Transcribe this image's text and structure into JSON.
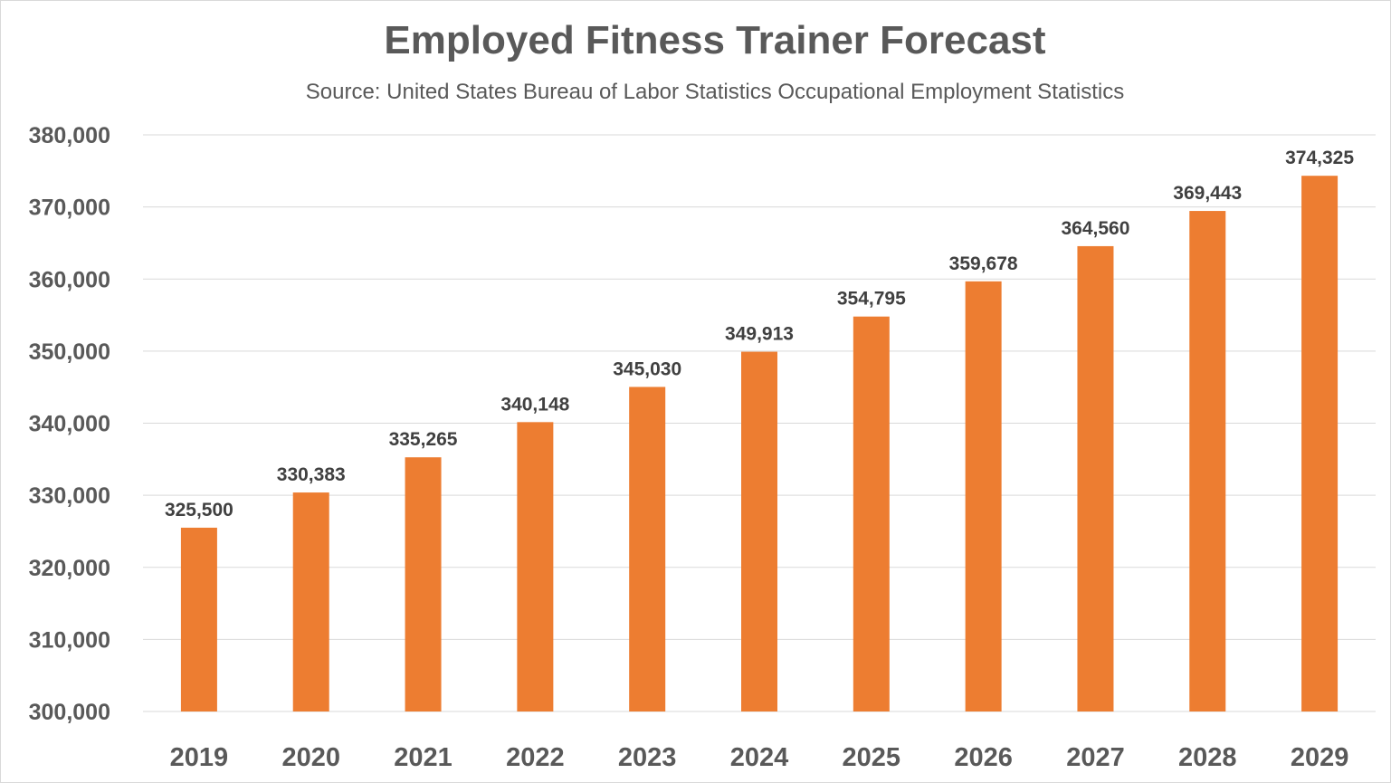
{
  "chart_data": {
    "type": "bar",
    "title": "Employed Fitness Trainer Forecast",
    "subtitle": "Source: United States Bureau of Labor Statistics Occupational Employment Statistics",
    "categories": [
      "2019",
      "2020",
      "2021",
      "2022",
      "2023",
      "2024",
      "2025",
      "2026",
      "2027",
      "2028",
      "2029"
    ],
    "values": [
      325500,
      330383,
      335265,
      340148,
      345030,
      349913,
      354795,
      359678,
      364560,
      369443,
      374325
    ],
    "data_labels": [
      "325,500",
      "330,383",
      "335,265",
      "340,148",
      "345,030",
      "349,913",
      "354,795",
      "359,678",
      "364,560",
      "369,443",
      "374,325"
    ],
    "ylim": [
      300000,
      380000
    ],
    "yticks": [
      "300,000",
      "310,000",
      "320,000",
      "330,000",
      "340,000",
      "350,000",
      "360,000",
      "370,000",
      "380,000"
    ],
    "xlabel": "",
    "ylabel": "",
    "grid": true,
    "legend": "none",
    "colors": {
      "bar": "#ED7D31",
      "grid": "#D9D9D9",
      "text": "#595959"
    }
  }
}
